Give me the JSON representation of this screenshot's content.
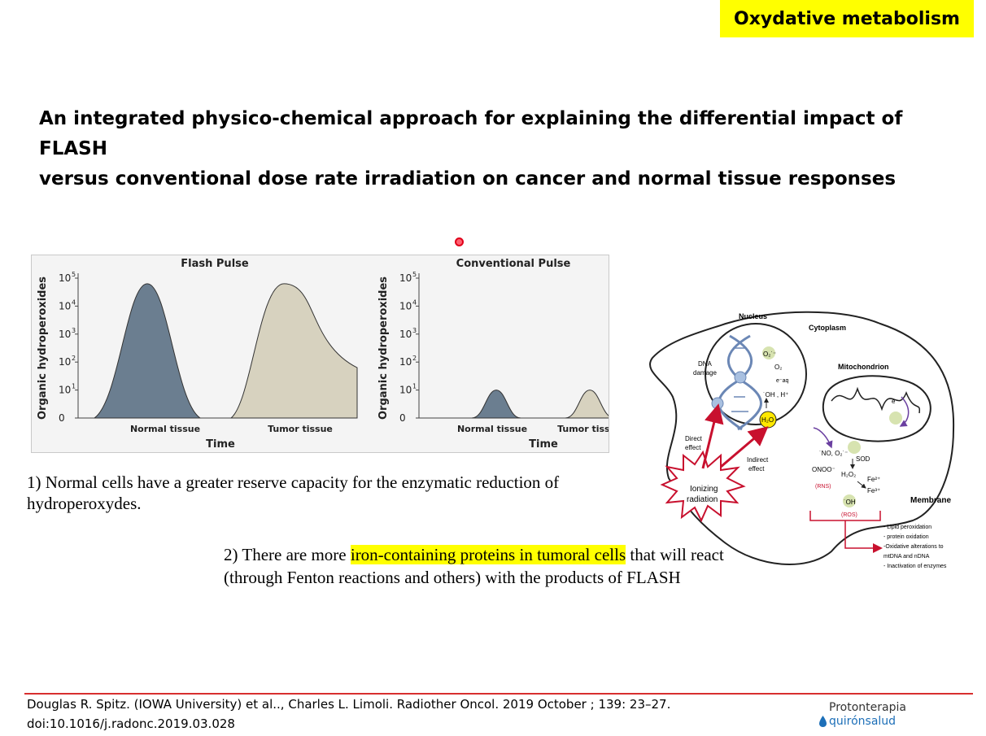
{
  "header": {
    "tag": "Oxydative metabolism"
  },
  "title_lines": [
    "An integrated physico-chemical approach for explaining the differential impact of FLASH",
    "versus conventional dose rate irradiation on cancer and normal tissue responses"
  ],
  "chart_data": [
    {
      "type": "area",
      "title": "Flash Pulse",
      "xlabel": "Time",
      "ylabel": "Organic hydroperoxides",
      "y_scale": "log",
      "yticks": [
        "0",
        "10",
        "10",
        "10",
        "10",
        "10"
      ],
      "ytick_exponents": [
        "",
        "1",
        "2",
        "3",
        "4",
        "5"
      ],
      "categories": [
        "Normal tissue",
        "Tumor tissue"
      ],
      "peaks": [
        {
          "category": "Normal tissue",
          "peak_exponent": 4.8,
          "color": "#6b7e90"
        },
        {
          "category": "Tumor tissue",
          "peak_exponent": 4.8,
          "color": "#d7d2bf",
          "end_exponent": 1.8
        }
      ]
    },
    {
      "type": "area",
      "title": "Conventional Pulse",
      "xlabel": "Time",
      "ylabel": "Organic hydroperoxides",
      "y_scale": "log",
      "yticks": [
        "0",
        "10",
        "10",
        "10",
        "10",
        "10"
      ],
      "ytick_exponents": [
        "",
        "1",
        "2",
        "3",
        "4",
        "5"
      ],
      "categories": [
        "Normal tissue",
        "Tumor tissue"
      ],
      "peaks": [
        {
          "category": "Normal tissue",
          "peak_exponent": 1.0,
          "color": "#6b7e90"
        },
        {
          "category": "Tumor tissue",
          "peak_exponent": 1.0,
          "color": "#d7d2bf"
        }
      ]
    }
  ],
  "notes": {
    "note1": "1) Normal cells have a greater reserve capacity for the enzymatic reduction of hydroperoxydes.",
    "note2_before": "2) There are more ",
    "note2_highlight": "iron-containing proteins in tumoral cells",
    "note2_after": " that will react (through Fenton reactions and others) with the products of FLASH"
  },
  "diagram": {
    "nucleus": "Nucleus",
    "cytoplasm": "Cytoplasm",
    "mitochondrion": "Mitochondrion",
    "membrane": "Membrane",
    "dna_damage_1": "DNA",
    "dna_damage_2": "damage",
    "direct_1": "Direct",
    "direct_2": "effect",
    "indirect_1": "Indirect",
    "indirect_2": "effect",
    "ionizing_1": "Ionizing",
    "ionizing_2": "radiation",
    "o2_radical": "O₂˙⁻",
    "o2": "O₂",
    "eaq": "e⁻aq",
    "oh_h": "˙OH , H⁺",
    "h2o": "H₂O",
    "no_o2": "˙NO, O₂˙⁻",
    "sod": "SOD",
    "onoo": "ONOO⁻",
    "h2o2": "H₂O₂",
    "fe2": "Fe²⁺",
    "fe3": "Fe³⁺",
    "rns": "(RNS)",
    "oh": "˙OH",
    "ros": "(ROS)",
    "e_minus": "e⁻",
    "effects": [
      "- Lipid peroxidation",
      "- protein oxidation",
      "-Oxidative alterations to",
      "  mtDNA and nDNA",
      "- Inactivation of enzymes"
    ]
  },
  "reference": {
    "line1": "Douglas R. Spitz. (IOWA University) et al.., Charles L. Limoli. Radiother Oncol. 2019 October ; 139: 23–27.",
    "line2": "doi:10.1016/j.radonc.2019.03.028"
  },
  "logo": {
    "line1": "Protonterapia",
    "line2": "quirónsalud"
  }
}
